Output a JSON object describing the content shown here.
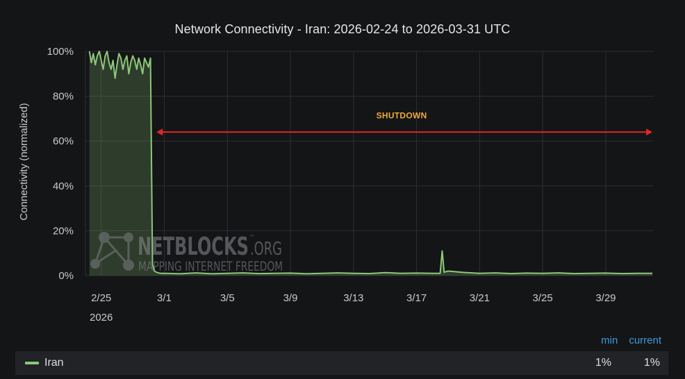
{
  "chart_data": {
    "type": "area",
    "title": "Network Connectivity - Iran: 2026-02-24 to 2026-03-31 UTC",
    "ylabel": "Connectivity (normalized)",
    "xlabel": "",
    "ylim": [
      0,
      100
    ],
    "y_ticks": [
      "0%",
      "20%",
      "40%",
      "60%",
      "80%",
      "100%"
    ],
    "y_tick_values": [
      0,
      20,
      40,
      60,
      80,
      100
    ],
    "xlim": [
      "2026-02-24T00:00",
      "2026-03-31T23:59"
    ],
    "x_ticks": [
      {
        "date": "2026-02-25",
        "label": "2/25",
        "sublabel": "2026"
      },
      {
        "date": "2026-03-01",
        "label": "3/1"
      },
      {
        "date": "2026-03-05",
        "label": "3/5"
      },
      {
        "date": "2026-03-09",
        "label": "3/9"
      },
      {
        "date": "2026-03-13",
        "label": "3/13"
      },
      {
        "date": "2026-03-17",
        "label": "3/17"
      },
      {
        "date": "2026-03-21",
        "label": "3/21"
      },
      {
        "date": "2026-03-25",
        "label": "3/25"
      },
      {
        "date": "2026-03-29",
        "label": "3/29"
      }
    ],
    "grid": true,
    "series": [
      {
        "name": "Iran",
        "color": "#8fc77b",
        "points": [
          [
            "2026-02-24T06:00",
            100
          ],
          [
            "2026-02-24T09:00",
            95
          ],
          [
            "2026-02-24T12:00",
            99
          ],
          [
            "2026-02-24T15:00",
            94
          ],
          [
            "2026-02-24T18:00",
            98
          ],
          [
            "2026-02-24T21:00",
            100
          ],
          [
            "2026-02-25T00:00",
            96
          ],
          [
            "2026-02-25T03:00",
            92
          ],
          [
            "2026-02-25T06:00",
            98
          ],
          [
            "2026-02-25T09:00",
            100
          ],
          [
            "2026-02-25T12:00",
            95
          ],
          [
            "2026-02-25T15:00",
            92
          ],
          [
            "2026-02-25T18:00",
            96
          ],
          [
            "2026-02-25T21:00",
            88
          ],
          [
            "2026-02-26T00:00",
            94
          ],
          [
            "2026-02-26T03:00",
            99
          ],
          [
            "2026-02-26T06:00",
            97
          ],
          [
            "2026-02-26T09:00",
            92
          ],
          [
            "2026-02-26T12:00",
            96
          ],
          [
            "2026-02-26T15:00",
            98
          ],
          [
            "2026-02-26T18:00",
            90
          ],
          [
            "2026-02-26T21:00",
            95
          ],
          [
            "2026-02-27T00:00",
            98
          ],
          [
            "2026-02-27T03:00",
            96
          ],
          [
            "2026-02-27T06:00",
            92
          ],
          [
            "2026-02-27T09:00",
            97
          ],
          [
            "2026-02-27T12:00",
            94
          ],
          [
            "2026-02-27T15:00",
            90
          ],
          [
            "2026-02-27T18:00",
            97
          ],
          [
            "2026-02-27T21:00",
            95
          ],
          [
            "2026-02-28T00:00",
            93
          ],
          [
            "2026-02-28T03:00",
            97
          ],
          [
            "2026-02-28T06:00",
            5
          ],
          [
            "2026-02-28T09:00",
            2
          ],
          [
            "2026-02-28T12:00",
            1.5
          ],
          [
            "2026-02-28T18:00",
            1
          ],
          [
            "2026-03-01T00:00",
            1
          ],
          [
            "2026-03-02T00:00",
            0.8
          ],
          [
            "2026-03-03T00:00",
            1.2
          ],
          [
            "2026-03-04T00:00",
            0.8
          ],
          [
            "2026-03-05T00:00",
            1
          ],
          [
            "2026-03-06T00:00",
            1.2
          ],
          [
            "2026-03-07T00:00",
            0.9
          ],
          [
            "2026-03-08T00:00",
            1
          ],
          [
            "2026-03-09T00:00",
            1.1
          ],
          [
            "2026-03-10T00:00",
            0.8
          ],
          [
            "2026-03-11T00:00",
            1
          ],
          [
            "2026-03-12T00:00",
            1.2
          ],
          [
            "2026-03-13T00:00",
            1
          ],
          [
            "2026-03-14T00:00",
            0.9
          ],
          [
            "2026-03-15T00:00",
            1.3
          ],
          [
            "2026-03-16T00:00",
            1
          ],
          [
            "2026-03-17T00:00",
            1.1
          ],
          [
            "2026-03-18T00:00",
            1
          ],
          [
            "2026-03-18T12:00",
            1
          ],
          [
            "2026-03-18T15:00",
            11
          ],
          [
            "2026-03-18T18:00",
            1.5
          ],
          [
            "2026-03-19T00:00",
            2
          ],
          [
            "2026-03-20T00:00",
            1.4
          ],
          [
            "2026-03-21T00:00",
            1
          ],
          [
            "2026-03-22T00:00",
            1.2
          ],
          [
            "2026-03-23T00:00",
            0.9
          ],
          [
            "2026-03-24T00:00",
            1.1
          ],
          [
            "2026-03-25T00:00",
            1
          ],
          [
            "2026-03-26T00:00",
            1.2
          ],
          [
            "2026-03-27T00:00",
            0.9
          ],
          [
            "2026-03-28T00:00",
            1
          ],
          [
            "2026-03-29T00:00",
            1.1
          ],
          [
            "2026-03-30T00:00",
            0.9
          ],
          [
            "2026-03-31T00:00",
            1
          ],
          [
            "2026-03-31T23:00",
            1
          ]
        ]
      }
    ],
    "annotations": [
      {
        "text": "SHUTDOWN",
        "x_start": "2026-02-28T12:00",
        "x_end": "2026-03-31T23:00",
        "y": 64,
        "color": "#e02727",
        "text_color": "#f2a93b"
      }
    ],
    "legend": {
      "placement": "bottom",
      "columns": [
        "min",
        "current"
      ],
      "rows": [
        {
          "name": "Iran",
          "min": "1%",
          "current": "1%"
        }
      ]
    }
  },
  "watermark": {
    "brand": "NETBLOCKS",
    "brand_suffix": ".ORG",
    "tm": "™",
    "tagline": "MAPPING INTERNET FREEDOM",
    "icon": "network-nodes-icon"
  }
}
